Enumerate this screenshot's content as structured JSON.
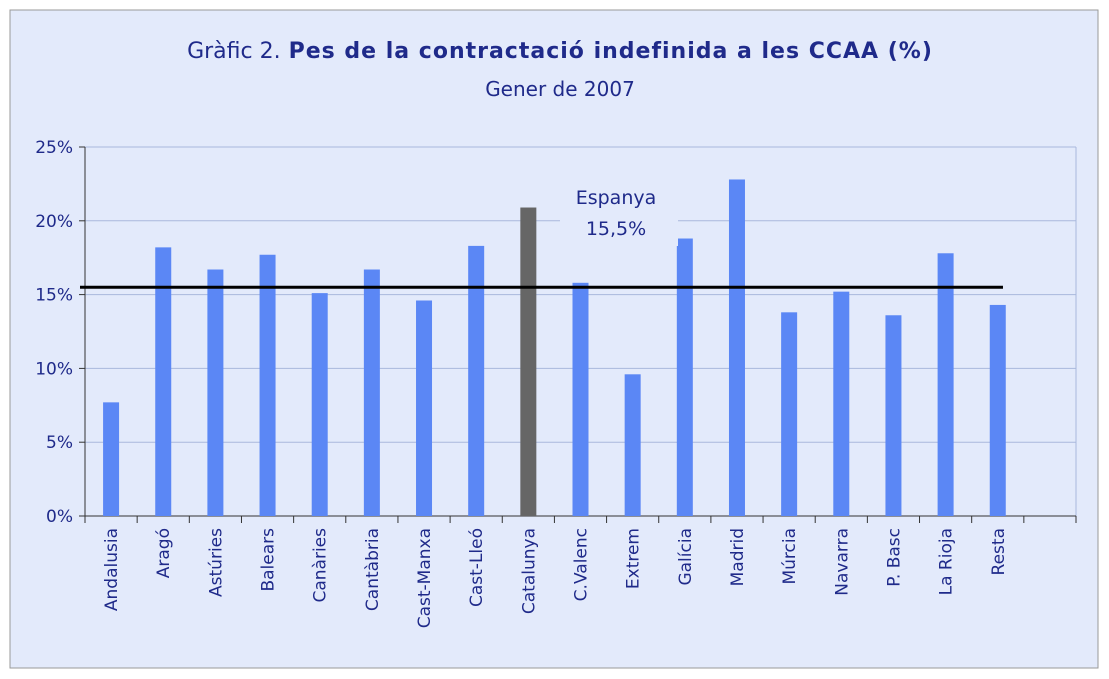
{
  "chart_data": {
    "type": "bar",
    "title_prefix": "Gràfic 2.",
    "title": "Pes de la contractació indefinida a les CCAA (%)",
    "subtitle": "Gener de 2007",
    "categories": [
      "Andalusia",
      "Aragó",
      "Astúries",
      "Balears",
      "Canàries",
      "Cantàbria",
      "Cast-Manxa",
      "Cast-Lleó",
      "Catalunya",
      "C.Valenc",
      "Extrem",
      "Galícia",
      "Madrid",
      "Múrcia",
      "Navarra",
      "P. Basc",
      "La Rioja",
      "Resta",
      null
    ],
    "values": [
      7.7,
      18.2,
      16.7,
      17.7,
      15.1,
      16.7,
      14.6,
      18.3,
      20.9,
      15.8,
      9.6,
      18.8,
      22.8,
      13.8,
      15.2,
      13.6,
      17.8,
      14.3,
      null
    ],
    "colors": [
      "#5b87f5",
      "#5b87f5",
      "#5b87f5",
      "#5b87f5",
      "#5b87f5",
      "#5b87f5",
      "#5b87f5",
      "#5b87f5",
      "#666666",
      "#5b87f5",
      "#5b87f5",
      "#5b87f5",
      "#5b87f5",
      "#5b87f5",
      "#5b87f5",
      "#5b87f5",
      "#5b87f5",
      "#5b87f5",
      "#5b87f5"
    ],
    "reference": {
      "name": "Espanya",
      "value": 15.5,
      "label": "15,5%",
      "color": "#000000"
    },
    "ylim": [
      0,
      25
    ],
    "yticks": [
      {
        "value": 0,
        "label": "0%"
      },
      {
        "value": 5,
        "label": "5%"
      },
      {
        "value": 10,
        "label": "10%"
      },
      {
        "value": 15,
        "label": "15%"
      },
      {
        "value": 20,
        "label": "20%"
      },
      {
        "value": 25,
        "label": "25%"
      }
    ],
    "grid": true
  }
}
